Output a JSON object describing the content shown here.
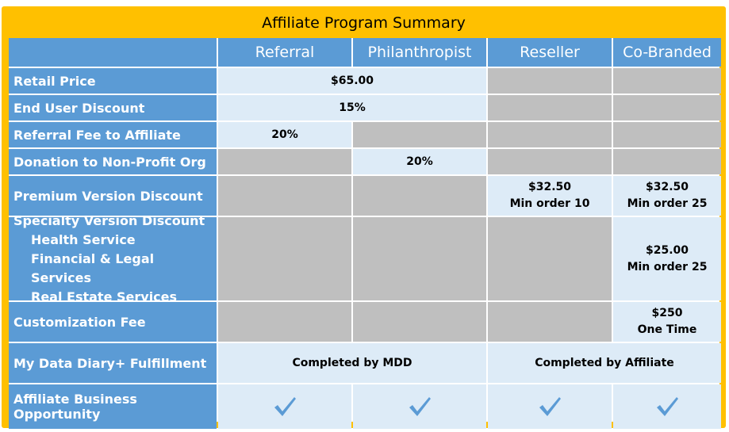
{
  "title": "Affiliate Program Summary",
  "columns": [
    "Referral",
    "Philanthropist",
    "Reseller",
    "Co-Branded"
  ],
  "rows": {
    "retail_price": {
      "label": "Retail Price",
      "value": "$65.00"
    },
    "end_user_discount": {
      "label": "End User Discount",
      "value": "15%"
    },
    "referral_fee": {
      "label": "Referral Fee to Affiliate",
      "referral": "20%"
    },
    "donation": {
      "label": "Donation to Non-Profit Org",
      "philanthropist": "20%"
    },
    "premium": {
      "label": "Premium Version Discount",
      "reseller_price": "$32.50",
      "reseller_min": "Min order 10",
      "cobranded_price": "$32.50",
      "cobranded_min": "Min order 25"
    },
    "specialty": {
      "label": "Specialty Version Discount",
      "items": [
        "Health Service",
        "Financial & Legal Services",
        "Real Estate Services"
      ],
      "cobranded_price": "$25.00",
      "cobranded_min": "Min order 25"
    },
    "customization": {
      "label": "Customization Fee",
      "cobranded_price": "$250",
      "cobranded_note": "One Time"
    },
    "fulfillment": {
      "label": "My Data Diary+ Fulfillment",
      "mdd": "Completed by MDD",
      "affiliate": "Completed by Affiliate"
    },
    "opportunity": {
      "label": "Affiliate Business Opportunity",
      "icon": "checkmark-icon"
    }
  },
  "colors": {
    "frame": "#ffc000",
    "header": "#5b9bd5",
    "value_bg": "#ddebf7",
    "na_bg": "#bfbfbf",
    "check": "#5b9bd5"
  }
}
